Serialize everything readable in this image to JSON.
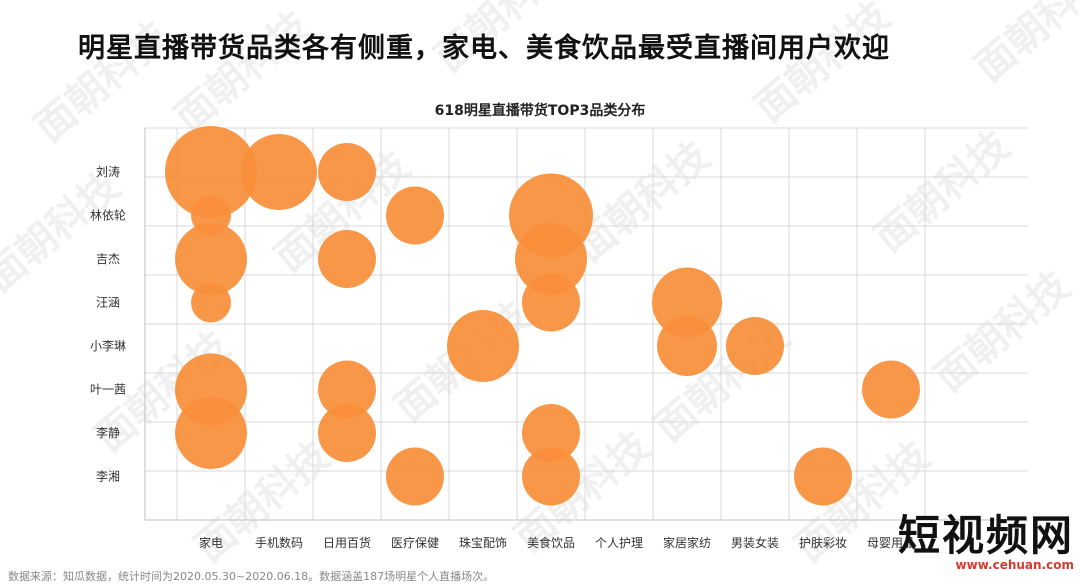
{
  "headline": "明星直播带货品类各有侧重，家电、美食饮品最受直播间用户欢迎",
  "footer": "数据来源：知瓜数据，统计时间为2020.05.30~2020.06.18。数据涵盖187场明星个人直播场次。",
  "watermark": "面朝科技",
  "logo": {
    "main": "短视频网",
    "sub": "www.cehuan.com"
  },
  "colors": {
    "bubble": "#F98E3A",
    "grid": "#d9d9d9"
  },
  "chart_data": {
    "type": "scatter",
    "subtype": "bubble",
    "title": "618明星直播带货TOP3品类分布",
    "x_categories": [
      "家电",
      "手机数码",
      "日用百货",
      "医疗保健",
      "珠宝配饰",
      "美食饮品",
      "个人护理",
      "家居家纺",
      "男装女装",
      "护肤彩妆",
      "母婴用品"
    ],
    "y_categories": [
      "刘涛",
      "林依轮",
      "吉杰",
      "汪涵",
      "小李琳",
      "叶一茜",
      "李静",
      "李湘"
    ],
    "grid": true,
    "points": [
      {
        "x": "家电",
        "y": "刘涛",
        "size": 4.6
      },
      {
        "x": "手机数码",
        "y": "刘涛",
        "size": 3.8
      },
      {
        "x": "日用百货",
        "y": "刘涛",
        "size": 2.9
      },
      {
        "x": "家电",
        "y": "林依轮",
        "size": 2.0
      },
      {
        "x": "医疗保健",
        "y": "林依轮",
        "size": 2.9
      },
      {
        "x": "美食饮品",
        "y": "林依轮",
        "size": 4.2
      },
      {
        "x": "家电",
        "y": "吉杰",
        "size": 3.6
      },
      {
        "x": "日用百货",
        "y": "吉杰",
        "size": 2.9
      },
      {
        "x": "美食饮品",
        "y": "吉杰",
        "size": 3.6
      },
      {
        "x": "家电",
        "y": "汪涵",
        "size": 2.0
      },
      {
        "x": "美食饮品",
        "y": "汪涵",
        "size": 2.9
      },
      {
        "x": "家居家纺",
        "y": "汪涵",
        "size": 3.5
      },
      {
        "x": "珠宝配饰",
        "y": "小李琳",
        "size": 3.6
      },
      {
        "x": "家居家纺",
        "y": "小李琳",
        "size": 3.0
      },
      {
        "x": "男装女装",
        "y": "小李琳",
        "size": 2.9
      },
      {
        "x": "家电",
        "y": "叶一茜",
        "size": 3.6
      },
      {
        "x": "日用百货",
        "y": "叶一茜",
        "size": 2.9
      },
      {
        "x": "母婴用品",
        "y": "叶一茜",
        "size": 2.9
      },
      {
        "x": "家电",
        "y": "李静",
        "size": 3.6
      },
      {
        "x": "日用百货",
        "y": "李静",
        "size": 2.9
      },
      {
        "x": "美食饮品",
        "y": "李静",
        "size": 2.9
      },
      {
        "x": "医疗保健",
        "y": "李湘",
        "size": 2.9
      },
      {
        "x": "美食饮品",
        "y": "李湘",
        "size": 2.9
      },
      {
        "x": "护肤彩妆",
        "y": "李湘",
        "size": 2.9
      }
    ]
  }
}
